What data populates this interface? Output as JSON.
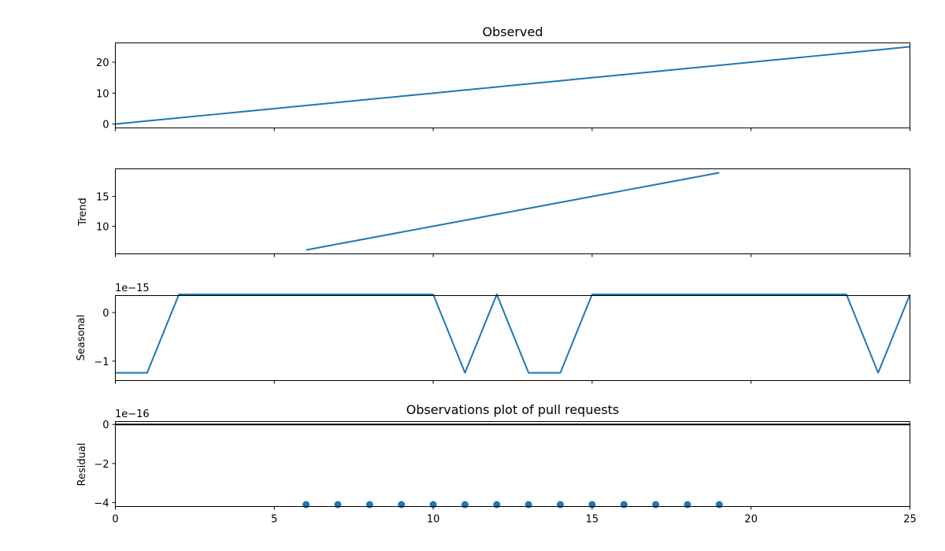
{
  "chart_data": {
    "type": "line",
    "shared_x": {
      "xlim": [
        0,
        25
      ],
      "ticks": [
        0,
        5,
        10,
        15,
        20,
        25
      ]
    },
    "colors": {
      "series": "#1f77b4",
      "axes": "#000000"
    },
    "panels": [
      {
        "id": "observed",
        "type": "line",
        "title": "Observed",
        "ylabel": "",
        "offset_label": "",
        "ylim": [
          -1.25,
          26.25
        ],
        "yticks": [
          0,
          10,
          20
        ],
        "ytick_labels": [
          "0",
          "10",
          "20"
        ],
        "x": [
          0,
          1,
          2,
          3,
          4,
          5,
          6,
          7,
          8,
          9,
          10,
          11,
          12,
          13,
          14,
          15,
          16,
          17,
          18,
          19,
          20,
          21,
          22,
          23,
          24,
          25
        ],
        "y": [
          0,
          1,
          2,
          3,
          4,
          5,
          6,
          7,
          8,
          9,
          10,
          11,
          12,
          13,
          14,
          15,
          16,
          17,
          18,
          19,
          20,
          21,
          22,
          23,
          24,
          25
        ]
      },
      {
        "id": "trend",
        "type": "line",
        "title": "",
        "ylabel": "Trend",
        "offset_label": "",
        "ylim": [
          5.35,
          19.65
        ],
        "yticks": [
          10,
          15
        ],
        "ytick_labels": [
          "10",
          "15"
        ],
        "x": [
          6,
          7,
          8,
          9,
          10,
          11,
          12,
          13,
          14,
          15,
          16,
          17,
          18,
          19
        ],
        "y": [
          6,
          7,
          8,
          9,
          10,
          11,
          12,
          13,
          14,
          15,
          16,
          17,
          18,
          19
        ]
      },
      {
        "id": "seasonal",
        "type": "line",
        "title": "",
        "ylabel": "Seasonal",
        "offset_label": "1e−15",
        "ylim": [
          -1.4,
          0.35
        ],
        "yticks": [
          -1,
          0
        ],
        "ytick_labels": [
          "−1",
          "0"
        ],
        "x": [
          0,
          1,
          2,
          3,
          4,
          5,
          6,
          7,
          8,
          9,
          10,
          11,
          12,
          13,
          14,
          15,
          16,
          17,
          18,
          19,
          20,
          21,
          22,
          23,
          24,
          25
        ],
        "y": [
          -1.24,
          -1.24,
          0.375,
          0.375,
          0.375,
          0.375,
          0.375,
          0.375,
          0.375,
          0.375,
          0.375,
          -1.24,
          0.375,
          -1.24,
          -1.24,
          0.375,
          0.375,
          0.375,
          0.375,
          0.375,
          0.375,
          0.375,
          0.375,
          0.375,
          -1.24,
          0.375
        ]
      },
      {
        "id": "residual",
        "type": "scatter",
        "title": "Observations plot of pull requests",
        "ylabel": "Residual",
        "offset_label": "1e−16",
        "ylim": [
          -4.2,
          0.15
        ],
        "yticks": [
          -4,
          -2,
          0
        ],
        "ytick_labels": [
          "−4",
          "−2",
          "0"
        ],
        "zero_line": true,
        "x": [
          6,
          7,
          8,
          9,
          10,
          11,
          12,
          13,
          14,
          15,
          16,
          17,
          18,
          19
        ],
        "y": [
          -4.1,
          -4.1,
          -4.1,
          -4.1,
          -4.1,
          -4.1,
          -4.1,
          -4.1,
          -4.1,
          -4.1,
          -4.1,
          -4.1,
          -4.1,
          -4.1
        ]
      }
    ]
  }
}
